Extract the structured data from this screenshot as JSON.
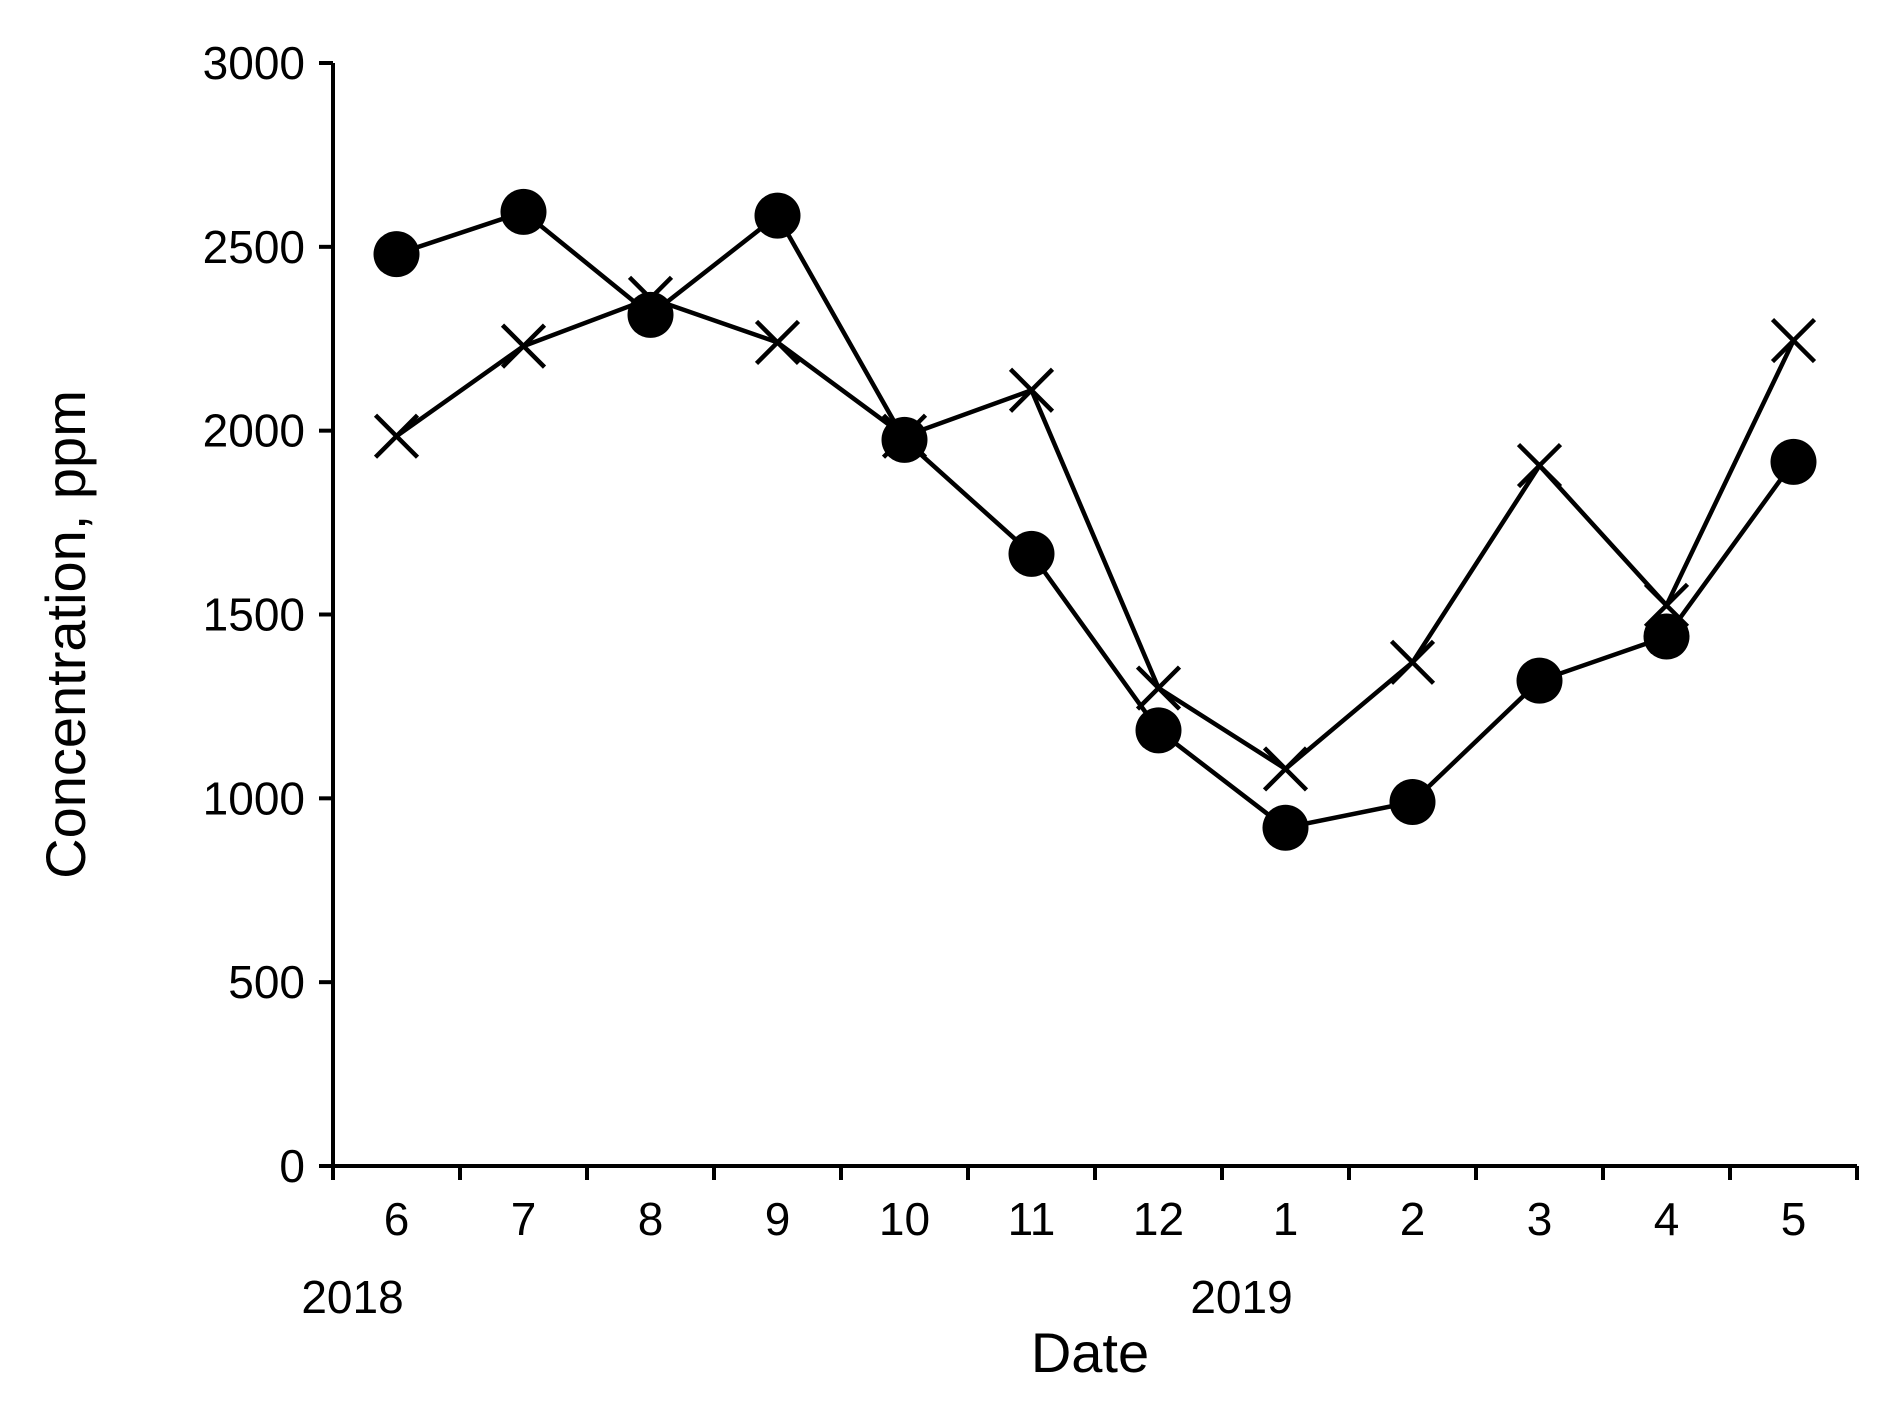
{
  "chart_data": {
    "type": "line",
    "title": "",
    "xlabel": "Date",
    "ylabel": "Concentration, ppm",
    "categories": [
      "6",
      "7",
      "8",
      "9",
      "10",
      "11",
      "12",
      "1",
      "2",
      "3",
      "4",
      "5"
    ],
    "year_labels": [
      {
        "label": "2018",
        "category_index": 0
      },
      {
        "label": "2019",
        "category_index": 7
      }
    ],
    "ylim": [
      0,
      3000
    ],
    "yticks": [
      0,
      500,
      1000,
      1500,
      2000,
      2500,
      3000
    ],
    "grid": false,
    "legend": "none",
    "series": [
      {
        "name": "circle-series",
        "marker": "circle",
        "color": "#000000",
        "values": [
          2480,
          2595,
          2315,
          2585,
          1975,
          1665,
          1185,
          920,
          990,
          1320,
          1440,
          1915
        ]
      },
      {
        "name": "cross-series",
        "marker": "cross",
        "color": "#000000",
        "values": [
          1985,
          2230,
          2360,
          2240,
          1985,
          2110,
          1300,
          1080,
          1370,
          1905,
          1525,
          2245
        ]
      }
    ]
  }
}
